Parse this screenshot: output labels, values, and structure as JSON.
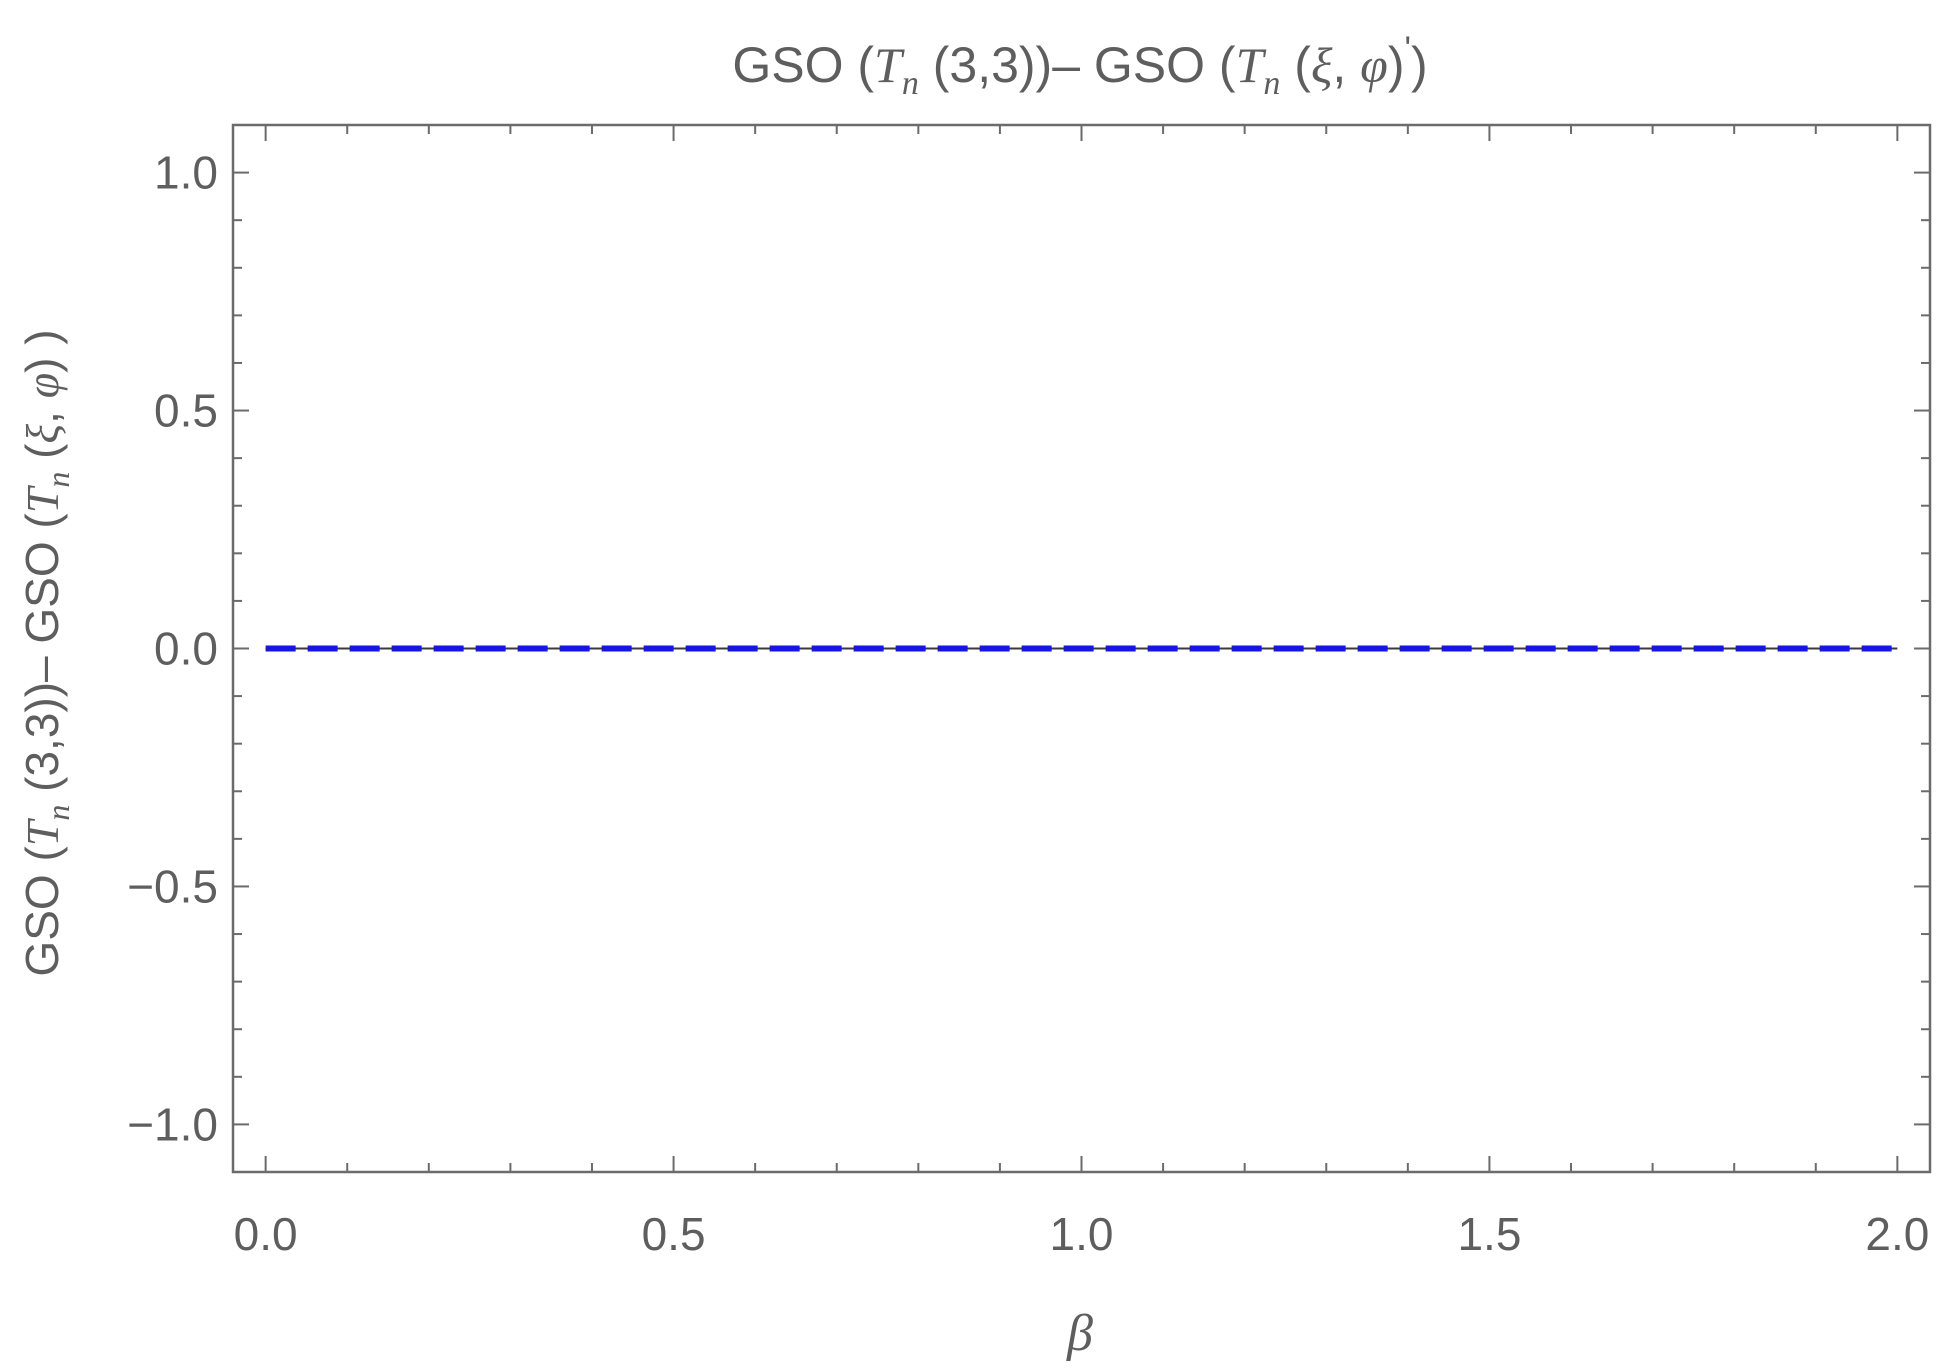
{
  "chart_data": {
    "type": "line",
    "title": {
      "prefix1": "GSO  (",
      "T1": "T",
      "n1": "n",
      "mid": "  (3,3))– GSO  (",
      "T2": "T",
      "n2": "n",
      "space2": " (",
      "xi": "ξ",
      "comma": ", ",
      "phi": "φ",
      "close": ")",
      "prime": "'",
      "end": ")"
    },
    "ylabel": {
      "prefix1": "GSO  (",
      "T1": "T",
      "n1": "n",
      "mid": "  (3,3))– GSO  (",
      "T2": "T",
      "n2": "n",
      "space2": " (",
      "xi": "ξ",
      "comma": ", ",
      "phi": "φ",
      "end": ") )"
    },
    "xlabel": "β",
    "xlim": [
      -0.04,
      2.04
    ],
    "ylim": [
      -1.1,
      1.1
    ],
    "x_ticks": [
      {
        "value": 0.0,
        "label": "0.0"
      },
      {
        "value": 0.5,
        "label": "0.5"
      },
      {
        "value": 1.0,
        "label": "1.0"
      },
      {
        "value": 1.5,
        "label": "1.5"
      },
      {
        "value": 2.0,
        "label": "2.0"
      }
    ],
    "y_ticks": [
      {
        "value": 1.0,
        "label": "1.0"
      },
      {
        "value": 0.5,
        "label": "0.5"
      },
      {
        "value": 0.0,
        "label": "0.0"
      },
      {
        "value": -0.5,
        "label": "−0.5"
      },
      {
        "value": -1.0,
        "label": "−1.0"
      }
    ],
    "series": [
      {
        "style": "solid",
        "color": "#3a3a3a",
        "x": [
          0,
          2
        ],
        "y": [
          0,
          0
        ]
      },
      {
        "style": "dashed",
        "color": "#1515e6",
        "x": [
          0,
          2
        ],
        "y": [
          0,
          0
        ]
      }
    ],
    "grid": false,
    "frame_color": "#6b6b6b"
  }
}
